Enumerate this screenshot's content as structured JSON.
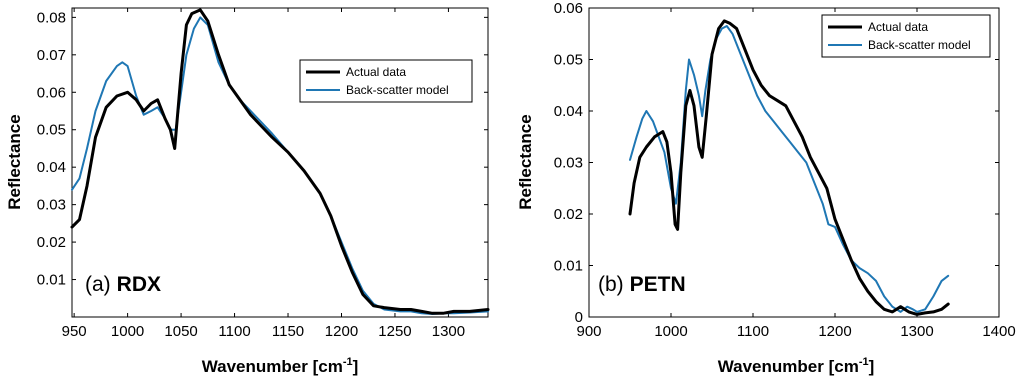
{
  "chart_data": [
    {
      "type": "line",
      "panel_label": "(a)",
      "panel_name": "RDX",
      "xlabel": "Wavenumber [cm",
      "xlabel_sup": "-1",
      "xlabel_end": "]",
      "ylabel": "Reflectance",
      "xlim": [
        948,
        1337
      ],
      "ylim": [
        0,
        0.0825
      ],
      "xticks": [
        950,
        1000,
        1050,
        1100,
        1150,
        1200,
        1250,
        1300
      ],
      "yticks": [
        0.01,
        0.02,
        0.03,
        0.04,
        0.05,
        0.06,
        0.07,
        0.08
      ],
      "ytick_labels": [
        "0.01",
        "0.02",
        "0.03",
        "0.04",
        "0.05",
        "0.06",
        "0.07",
        "0.08"
      ],
      "legend_position": "top-right",
      "series": [
        {
          "name": "Actual data",
          "color": "#000000",
          "points": [
            [
              948,
              0.024
            ],
            [
              955,
              0.026
            ],
            [
              962,
              0.035
            ],
            [
              970,
              0.048
            ],
            [
              980,
              0.056
            ],
            [
              990,
              0.059
            ],
            [
              1000,
              0.06
            ],
            [
              1008,
              0.058
            ],
            [
              1015,
              0.055
            ],
            [
              1022,
              0.057
            ],
            [
              1028,
              0.058
            ],
            [
              1035,
              0.053
            ],
            [
              1040,
              0.05
            ],
            [
              1044,
              0.045
            ],
            [
              1050,
              0.065
            ],
            [
              1055,
              0.078
            ],
            [
              1060,
              0.081
            ],
            [
              1068,
              0.082
            ],
            [
              1075,
              0.079
            ],
            [
              1085,
              0.07
            ],
            [
              1095,
              0.062
            ],
            [
              1105,
              0.058
            ],
            [
              1115,
              0.054
            ],
            [
              1125,
              0.051
            ],
            [
              1135,
              0.048
            ],
            [
              1150,
              0.044
            ],
            [
              1165,
              0.039
            ],
            [
              1180,
              0.033
            ],
            [
              1190,
              0.027
            ],
            [
              1200,
              0.019
            ],
            [
              1210,
              0.012
            ],
            [
              1220,
              0.006
            ],
            [
              1230,
              0.003
            ],
            [
              1240,
              0.0025
            ],
            [
              1255,
              0.002
            ],
            [
              1265,
              0.002
            ],
            [
              1275,
              0.0015
            ],
            [
              1285,
              0.001
            ],
            [
              1295,
              0.001
            ],
            [
              1305,
              0.0015
            ],
            [
              1320,
              0.0015
            ],
            [
              1337,
              0.002
            ]
          ]
        },
        {
          "name": "Back-scatter model",
          "color": "#1f77b4",
          "points": [
            [
              948,
              0.034
            ],
            [
              955,
              0.037
            ],
            [
              962,
              0.045
            ],
            [
              970,
              0.055
            ],
            [
              980,
              0.063
            ],
            [
              990,
              0.067
            ],
            [
              995,
              0.068
            ],
            [
              1000,
              0.067
            ],
            [
              1008,
              0.059
            ],
            [
              1015,
              0.054
            ],
            [
              1022,
              0.055
            ],
            [
              1028,
              0.056
            ],
            [
              1035,
              0.053
            ],
            [
              1040,
              0.05
            ],
            [
              1045,
              0.05
            ],
            [
              1050,
              0.06
            ],
            [
              1055,
              0.07
            ],
            [
              1062,
              0.077
            ],
            [
              1068,
              0.08
            ],
            [
              1075,
              0.078
            ],
            [
              1085,
              0.068
            ],
            [
              1095,
              0.062
            ],
            [
              1105,
              0.058
            ],
            [
              1115,
              0.055
            ],
            [
              1125,
              0.052
            ],
            [
              1135,
              0.049
            ],
            [
              1150,
              0.044
            ],
            [
              1165,
              0.039
            ],
            [
              1180,
              0.033
            ],
            [
              1190,
              0.027
            ],
            [
              1200,
              0.02
            ],
            [
              1210,
              0.013
            ],
            [
              1220,
              0.007
            ],
            [
              1230,
              0.0035
            ],
            [
              1240,
              0.002
            ],
            [
              1255,
              0.0015
            ],
            [
              1265,
              0.0015
            ],
            [
              1275,
              0.001
            ],
            [
              1285,
              0.0008
            ],
            [
              1295,
              0.001
            ],
            [
              1305,
              0.001
            ],
            [
              1320,
              0.0012
            ],
            [
              1337,
              0.0015
            ]
          ]
        }
      ]
    },
    {
      "type": "line",
      "panel_label": "(b)",
      "panel_name": "PETN",
      "xlabel": "Wavenumber [cm",
      "xlabel_sup": "-1",
      "xlabel_end": "]",
      "ylabel": "Reflectance",
      "xlim": [
        900,
        1400
      ],
      "ylim": [
        0,
        0.06
      ],
      "xticks": [
        900,
        1000,
        1100,
        1200,
        1300,
        1400
      ],
      "yticks": [
        0,
        0.01,
        0.02,
        0.03,
        0.04,
        0.05,
        0.06
      ],
      "ytick_labels": [
        "0",
        "0.01",
        "0.02",
        "0.03",
        "0.04",
        "0.05",
        "0.06"
      ],
      "legend_position": "top-right",
      "series": [
        {
          "name": "Actual data",
          "color": "#000000",
          "points": [
            [
              950,
              0.02
            ],
            [
              955,
              0.026
            ],
            [
              962,
              0.031
            ],
            [
              970,
              0.033
            ],
            [
              980,
              0.035
            ],
            [
              990,
              0.036
            ],
            [
              995,
              0.034
            ],
            [
              1000,
              0.028
            ],
            [
              1005,
              0.018
            ],
            [
              1008,
              0.017
            ],
            [
              1012,
              0.028
            ],
            [
              1018,
              0.041
            ],
            [
              1023,
              0.044
            ],
            [
              1028,
              0.041
            ],
            [
              1034,
              0.033
            ],
            [
              1038,
              0.031
            ],
            [
              1043,
              0.039
            ],
            [
              1050,
              0.051
            ],
            [
              1058,
              0.056
            ],
            [
              1065,
              0.0575
            ],
            [
              1072,
              0.057
            ],
            [
              1080,
              0.056
            ],
            [
              1090,
              0.052
            ],
            [
              1100,
              0.048
            ],
            [
              1110,
              0.045
            ],
            [
              1120,
              0.043
            ],
            [
              1130,
              0.042
            ],
            [
              1140,
              0.041
            ],
            [
              1150,
              0.038
            ],
            [
              1160,
              0.035
            ],
            [
              1170,
              0.031
            ],
            [
              1180,
              0.028
            ],
            [
              1190,
              0.025
            ],
            [
              1200,
              0.019
            ],
            [
              1210,
              0.015
            ],
            [
              1220,
              0.011
            ],
            [
              1230,
              0.0075
            ],
            [
              1240,
              0.005
            ],
            [
              1250,
              0.003
            ],
            [
              1260,
              0.0015
            ],
            [
              1270,
              0.001
            ],
            [
              1280,
              0.002
            ],
            [
              1285,
              0.0015
            ],
            [
              1290,
              0.001
            ],
            [
              1300,
              0.0005
            ],
            [
              1310,
              0.0008
            ],
            [
              1320,
              0.001
            ],
            [
              1330,
              0.0015
            ],
            [
              1338,
              0.0025
            ]
          ]
        },
        {
          "name": "Back-scatter model",
          "color": "#1f77b4",
          "points": [
            [
              950,
              0.0305
            ],
            [
              958,
              0.035
            ],
            [
              965,
              0.0385
            ],
            [
              970,
              0.04
            ],
            [
              978,
              0.038
            ],
            [
              985,
              0.035
            ],
            [
              992,
              0.032
            ],
            [
              1000,
              0.025
            ],
            [
              1006,
              0.022
            ],
            [
              1012,
              0.03
            ],
            [
              1018,
              0.044
            ],
            [
              1022,
              0.05
            ],
            [
              1028,
              0.047
            ],
            [
              1034,
              0.043
            ],
            [
              1038,
              0.039
            ],
            [
              1042,
              0.044
            ],
            [
              1048,
              0.05
            ],
            [
              1055,
              0.054
            ],
            [
              1062,
              0.056
            ],
            [
              1068,
              0.0565
            ],
            [
              1075,
              0.055
            ],
            [
              1085,
              0.051
            ],
            [
              1095,
              0.047
            ],
            [
              1105,
              0.043
            ],
            [
              1115,
              0.04
            ],
            [
              1125,
              0.038
            ],
            [
              1135,
              0.036
            ],
            [
              1145,
              0.034
            ],
            [
              1155,
              0.032
            ],
            [
              1165,
              0.03
            ],
            [
              1175,
              0.026
            ],
            [
              1185,
              0.022
            ],
            [
              1192,
              0.018
            ],
            [
              1200,
              0.0175
            ],
            [
              1210,
              0.014
            ],
            [
              1220,
              0.011
            ],
            [
              1230,
              0.0095
            ],
            [
              1240,
              0.0085
            ],
            [
              1250,
              0.007
            ],
            [
              1260,
              0.004
            ],
            [
              1270,
              0.002
            ],
            [
              1280,
              0.001
            ],
            [
              1288,
              0.002
            ],
            [
              1295,
              0.0015
            ],
            [
              1300,
              0.001
            ],
            [
              1310,
              0.0015
            ],
            [
              1320,
              0.004
            ],
            [
              1330,
              0.007
            ],
            [
              1338,
              0.008
            ]
          ]
        }
      ]
    }
  ]
}
